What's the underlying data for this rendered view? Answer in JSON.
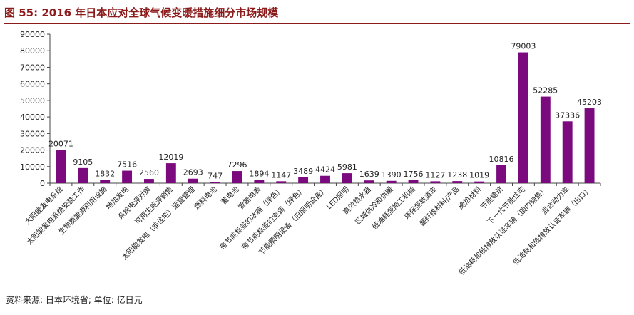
{
  "header": {
    "title": "图 55:   2016 年日本应对全球气候变暖措施细分市场规模"
  },
  "footer": {
    "source": "资料来源: 日本环境省; 单位: 亿日元"
  },
  "colors": {
    "bar": "#7b0a7f",
    "accent": "#8b1a1a",
    "axis": "#444444",
    "text": "#222222"
  },
  "chart_data": {
    "type": "bar",
    "title": "",
    "xlabel": "",
    "ylabel": "",
    "ylim": [
      0,
      90000
    ],
    "yticks": [
      0,
      10000,
      20000,
      30000,
      40000,
      50000,
      60000,
      70000,
      80000,
      90000
    ],
    "grid": false,
    "legend": "none",
    "categories": [
      "太阳能发电系统",
      "太阳能发电系统安装工作",
      "生物质能源利用设施",
      "地热发电",
      "系统电源对策",
      "可再生能源销售",
      "太阳能发电（非住宅）运营管理",
      "燃料电池",
      "蓄电池",
      "智能电表",
      "带节能标签的冰箱（绿色）",
      "带节能标签的空调（绿色）",
      "节能照明设备（旧照明设备）",
      "LED照明",
      "高效热水器",
      "区域供冷和供暖",
      "低油耗型施工机械",
      "环保型轨道车",
      "硬纤维材料/产品",
      "绝热材料",
      "节能建筑",
      "下一代节能住宅",
      "低油耗和低排放认证车辆（国内销售）",
      "混合动力车",
      "低油耗和低排放认证车辆（出口）"
    ],
    "values": [
      20071,
      9105,
      1832,
      7516,
      2560,
      12019,
      2693,
      747,
      7296,
      1894,
      1147,
      3489,
      4424,
      5981,
      1639,
      1390,
      1756,
      1127,
      1238,
      1019,
      10816,
      79003,
      52285,
      37336,
      45203
    ]
  }
}
